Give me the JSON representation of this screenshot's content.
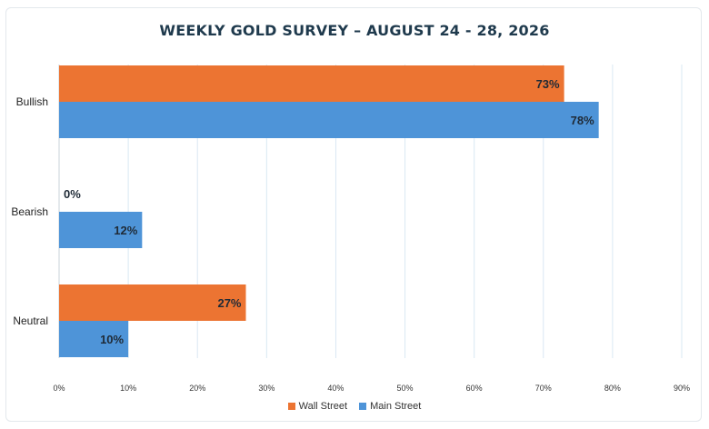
{
  "chart_data": {
    "type": "bar",
    "orientation": "horizontal",
    "title": "WEEKLY GOLD SURVEY – AUGUST 24 - 28, 2026",
    "categories": [
      "Bullish",
      "Bearish",
      "Neutral"
    ],
    "series": [
      {
        "name": "Wall Street",
        "color": "#ec7432",
        "values": [
          73,
          0,
          27
        ],
        "labels": [
          "73%",
          "0%",
          "27%"
        ]
      },
      {
        "name": "Main Street",
        "color": "#4e94d8",
        "values": [
          78,
          12,
          10
        ],
        "labels": [
          "78%",
          "12%",
          "10%"
        ]
      }
    ],
    "xlim": [
      0,
      90
    ],
    "xticks": [
      0,
      10,
      20,
      30,
      40,
      50,
      60,
      70,
      80,
      90
    ],
    "xtick_labels": [
      "0%",
      "10%",
      "20%",
      "30%",
      "40%",
      "50%",
      "60%",
      "70%",
      "80%",
      "90%"
    ],
    "grid": true,
    "legend_position": "bottom"
  }
}
